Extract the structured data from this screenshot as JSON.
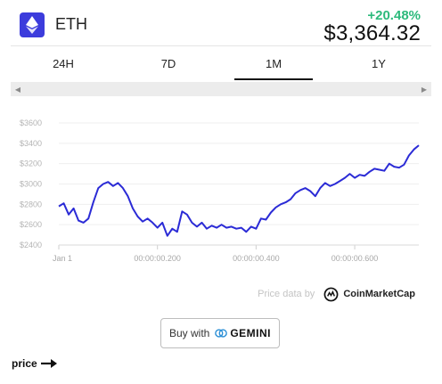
{
  "header": {
    "coin_icon": "ethereum-diamond-icon",
    "coin_name": "ETH",
    "change": "+20.48%",
    "change_color": "#2dba7c",
    "price": "$3,364.32"
  },
  "tabs": [
    {
      "label": "24H",
      "active": false
    },
    {
      "label": "7D",
      "active": false
    },
    {
      "label": "1M",
      "active": true
    },
    {
      "label": "1Y",
      "active": false
    }
  ],
  "scrollbar": {
    "left_icon": "triangle-left-icon",
    "right_icon": "triangle-right-icon"
  },
  "chart_data": {
    "type": "line",
    "line_color": "#2b2bd6",
    "grid": true,
    "ylim": [
      2400,
      3600
    ],
    "y_ticks": [
      {
        "value": 3600,
        "label": "$3600"
      },
      {
        "value": 3400,
        "label": "$3400"
      },
      {
        "value": 3200,
        "label": "$3200"
      },
      {
        "value": 3000,
        "label": "$3000"
      },
      {
        "value": 2800,
        "label": "$2800"
      },
      {
        "value": 2600,
        "label": "$2600"
      },
      {
        "value": 2400,
        "label": "$2400"
      }
    ],
    "x_ticks": [
      {
        "index": 0,
        "label": "Jan 1"
      },
      {
        "index": 20,
        "label": "00:00:00.200"
      },
      {
        "index": 40,
        "label": "00:00:00.400"
      },
      {
        "index": 60,
        "label": "00:00:00.600"
      }
    ],
    "values": [
      2780,
      2810,
      2700,
      2760,
      2640,
      2620,
      2660,
      2820,
      2960,
      3000,
      3020,
      2980,
      3010,
      2960,
      2880,
      2760,
      2680,
      2630,
      2660,
      2620,
      2570,
      2620,
      2490,
      2560,
      2530,
      2730,
      2700,
      2620,
      2580,
      2620,
      2560,
      2590,
      2570,
      2600,
      2570,
      2580,
      2560,
      2570,
      2530,
      2580,
      2560,
      2660,
      2650,
      2720,
      2770,
      2800,
      2820,
      2850,
      2910,
      2940,
      2960,
      2930,
      2880,
      2960,
      3010,
      2980,
      3000,
      3030,
      3060,
      3100,
      3060,
      3090,
      3080,
      3120,
      3150,
      3140,
      3130,
      3200,
      3170,
      3160,
      3190,
      3280,
      3340,
      3380
    ]
  },
  "credit": {
    "prefix": "Price data by",
    "brand": "CoinMarketCap",
    "logo_icon": "coinmarketcap-logo-icon"
  },
  "buy": {
    "label": "Buy with",
    "brand": "GEMINI",
    "brand_icon": "gemini-logo-icon"
  },
  "footer": {
    "label": "price",
    "icon": "arrow-right-icon"
  }
}
